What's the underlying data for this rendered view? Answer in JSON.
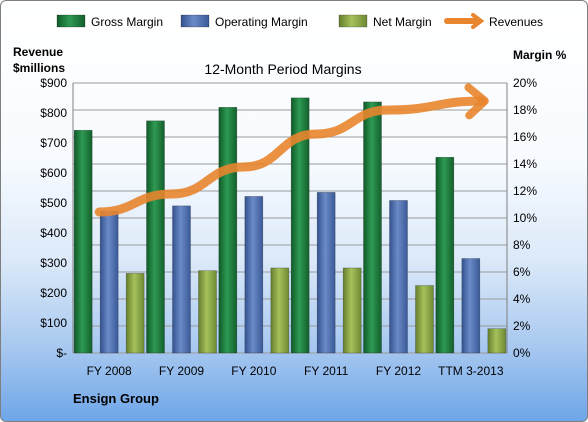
{
  "chart_data": {
    "type": "bar",
    "title": "12-Month Period Margins",
    "categories": [
      "FY 2008",
      "FY 2009",
      "FY 2010",
      "FY 2011",
      "FY 2012",
      "TTM 3-2013"
    ],
    "series": [
      {
        "name": "Gross Margin",
        "axis": "right",
        "unit": "percent",
        "values": [
          16.5,
          17.2,
          18.2,
          18.9,
          18.6,
          14.5
        ],
        "color": "#1e7b3c"
      },
      {
        "name": "Operating Margin",
        "axis": "right",
        "unit": "percent",
        "values": [
          10.5,
          10.9,
          11.6,
          11.9,
          11.3,
          7.0
        ],
        "color": "#4f6fb0"
      },
      {
        "name": "Net Margin",
        "axis": "right",
        "unit": "percent",
        "values": [
          5.9,
          6.1,
          6.3,
          6.3,
          5.0,
          1.8
        ],
        "color": "#8aa845"
      },
      {
        "name": "Revenues",
        "type": "line",
        "axis": "left",
        "unit": "$millions",
        "values": [
          470,
          530,
          620,
          730,
          810,
          840
        ],
        "color": "#e8852e"
      }
    ],
    "y_left": {
      "label_line1": "Revenue",
      "label_line2": "$millions",
      "min": 0,
      "max": 900,
      "step": 100,
      "ticks": [
        "$-",
        "$100",
        "$200",
        "$300",
        "$400",
        "$500",
        "$600",
        "$700",
        "$800",
        "$900"
      ]
    },
    "y_right": {
      "label": "Margin %",
      "min": 0,
      "max": 20,
      "step": 2,
      "ticks": [
        "0%",
        "2%",
        "4%",
        "6%",
        "8%",
        "10%",
        "12%",
        "14%",
        "16%",
        "18%",
        "20%"
      ]
    },
    "grid": true,
    "legend_position": "top"
  },
  "footer": {
    "company": "Ensign Group"
  }
}
